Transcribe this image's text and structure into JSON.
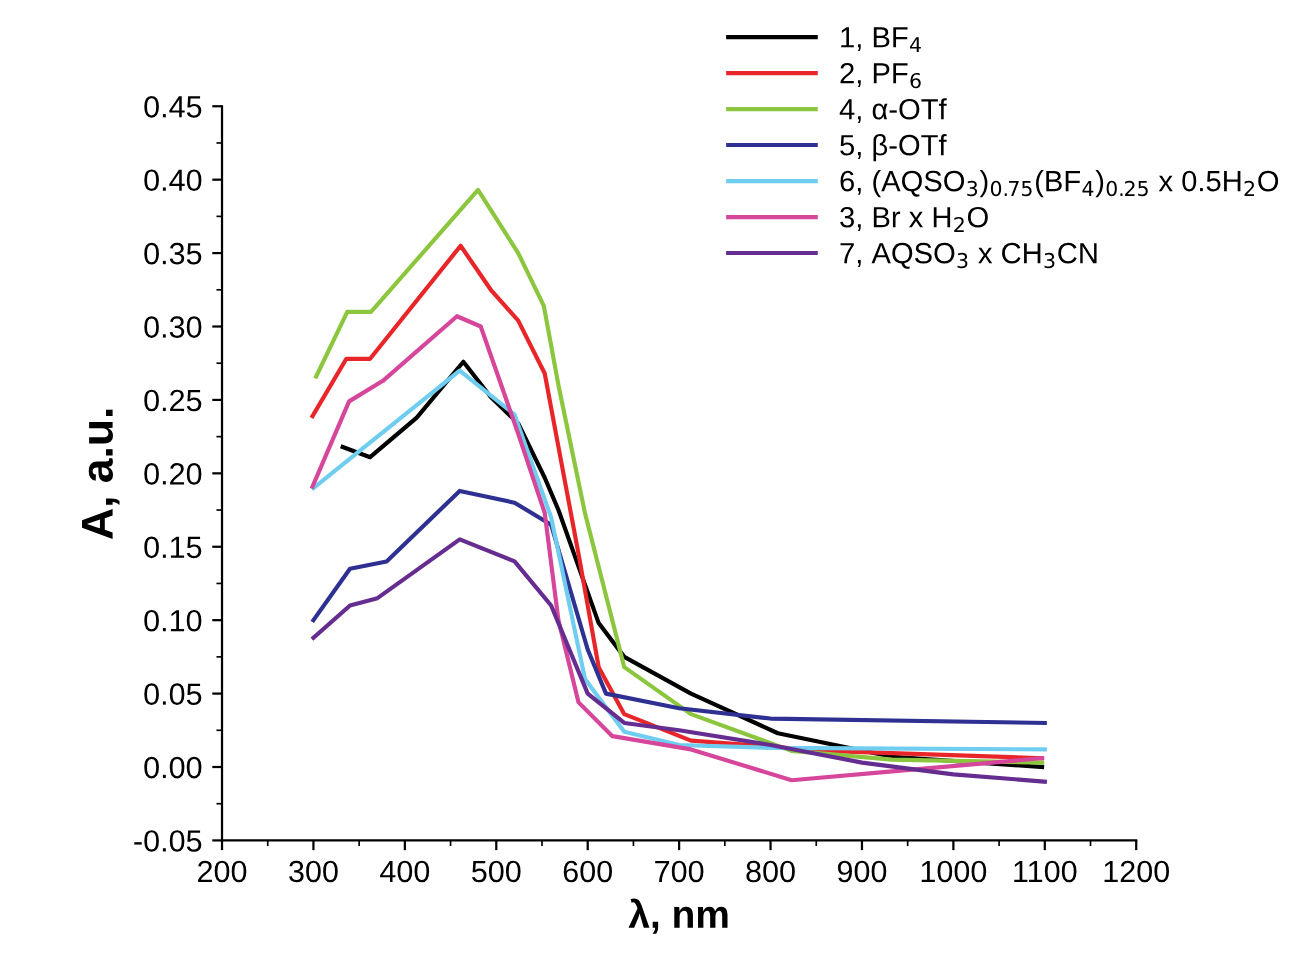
{
  "chart_data": {
    "type": "line",
    "xlabel": "λ, nm",
    "ylabel": "A, a.u.",
    "xlim": [
      200,
      1200
    ],
    "xticks": [
      200,
      300,
      400,
      500,
      600,
      700,
      800,
      900,
      1000,
      1100,
      1200
    ],
    "ylim": [
      -0.05,
      0.45
    ],
    "yticks": [
      {
        "value": -0.05,
        "label": "-0.05"
      },
      {
        "value": 0,
        "label": "0.00"
      },
      {
        "value": 0.05,
        "label": "0.05"
      },
      {
        "value": 0.1,
        "label": "0.10"
      },
      {
        "value": 0.15,
        "label": "0.15"
      },
      {
        "value": 0.2,
        "label": "0.20"
      },
      {
        "value": 0.25,
        "label": "0.25"
      },
      {
        "value": 0.3,
        "label": "0.30"
      },
      {
        "value": 0.35,
        "label": "0.35"
      },
      {
        "value": 0.4,
        "label": "0.40"
      },
      {
        "value": 0.45,
        "label": "0.45"
      }
    ],
    "grid": false,
    "legend": "top right",
    "marker": "none",
    "line_style": "solid",
    "series": [
      {
        "name": "1, BF$_{4}$",
        "color": "#000000",
        "x": [
          332,
          362,
          413,
          464,
          494,
          524,
          553,
          568,
          612,
          640,
          713,
          808,
          933,
          1097
        ],
        "values": [
          0.218,
          0.211,
          0.238,
          0.276,
          0.252,
          0.234,
          0.197,
          0.175,
          0.098,
          0.075,
          0.05,
          0.023,
          0.007,
          0.0
        ]
      },
      {
        "name": "2, PF$_{6}$",
        "color": "#e8262a",
        "x": [
          299,
          336,
          362,
          461,
          494,
          524,
          553,
          568,
          590,
          612,
          640,
          713,
          860,
          1097
        ],
        "values": [
          0.239,
          0.278,
          0.278,
          0.355,
          0.325,
          0.304,
          0.268,
          0.218,
          0.145,
          0.068,
          0.036,
          0.018,
          0.011,
          0.006
        ]
      },
      {
        "name": "4, α-OTf",
        "color": "#8cc63f",
        "x": [
          303,
          337,
          363,
          480,
          524,
          552,
          568,
          597,
          640,
          713,
          823,
          933,
          1097
        ],
        "values": [
          0.266,
          0.31,
          0.31,
          0.393,
          0.35,
          0.314,
          0.26,
          0.173,
          0.068,
          0.036,
          0.011,
          0.005,
          0.003
        ]
      },
      {
        "name": "5, β-OTf",
        "color": "#2e3192",
        "x": [
          300,
          340,
          380,
          460,
          520,
          560,
          600,
          620,
          700,
          800,
          1100
        ],
        "values": [
          0.1,
          0.135,
          0.14,
          0.188,
          0.18,
          0.165,
          0.08,
          0.05,
          0.04,
          0.033,
          0.03
        ]
      },
      {
        "name": "6, (AQSO$_{3}$)$_{0.75}$(BF$_{4}$)$_{0.25}$ x 0.5H$_{2}$O",
        "color": "#6fcdf0",
        "x": [
          300,
          340,
          400,
          460,
          520,
          560,
          597,
          640,
          700,
          800,
          1100
        ],
        "values": [
          0.19,
          0.21,
          0.24,
          0.27,
          0.24,
          0.17,
          0.06,
          0.024,
          0.015,
          0.013,
          0.012
        ]
      },
      {
        "name": "3, Br x H$_{2}$O",
        "color": "#d6469a",
        "x": [
          299,
          339,
          376,
          457,
          483,
          524,
          553,
          568,
          590,
          627,
          713,
          823,
          933,
          1097
        ],
        "values": [
          0.191,
          0.249,
          0.263,
          0.307,
          0.3,
          0.227,
          0.173,
          0.1,
          0.044,
          0.021,
          0.012,
          -0.009,
          -0.003,
          0.006
        ]
      },
      {
        "name": "7, AQSO$_{3}$ x CH$_{3}$CN",
        "color": "#662d91",
        "x": [
          300,
          340,
          370,
          460,
          520,
          560,
          600,
          640,
          700,
          800,
          900,
          1000,
          1100
        ],
        "values": [
          0.088,
          0.11,
          0.115,
          0.155,
          0.14,
          0.11,
          0.05,
          0.03,
          0.025,
          0.015,
          0.003,
          -0.005,
          -0.01
        ]
      }
    ]
  }
}
